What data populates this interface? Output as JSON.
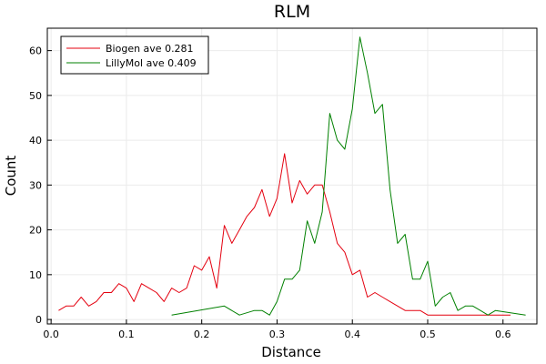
{
  "chart_data": {
    "type": "line",
    "title": "RLM",
    "xlabel": "Distance",
    "ylabel": "Count",
    "xlim": [
      -0.005,
      0.645
    ],
    "ylim": [
      -1,
      65
    ],
    "xticks": [
      0.0,
      0.1,
      0.2,
      0.3,
      0.4,
      0.5,
      0.6
    ],
    "xtick_labels": [
      "0.0",
      "0.1",
      "0.2",
      "0.3",
      "0.4",
      "0.5",
      "0.6"
    ],
    "yticks": [
      0,
      10,
      20,
      30,
      40,
      50,
      60
    ],
    "ytick_labels": [
      "0",
      "10",
      "20",
      "30",
      "40",
      "50",
      "60"
    ],
    "grid": true,
    "legend_position": "top-left",
    "series": [
      {
        "name": "Biogen ave 0.281",
        "color": "#e4000f",
        "x": [
          0.01,
          0.02,
          0.03,
          0.04,
          0.05,
          0.06,
          0.07,
          0.08,
          0.09,
          0.1,
          0.11,
          0.12,
          0.13,
          0.14,
          0.15,
          0.16,
          0.17,
          0.18,
          0.19,
          0.2,
          0.21,
          0.22,
          0.23,
          0.24,
          0.25,
          0.26,
          0.27,
          0.28,
          0.29,
          0.3,
          0.31,
          0.32,
          0.33,
          0.34,
          0.35,
          0.36,
          0.37,
          0.38,
          0.39,
          0.4,
          0.41,
          0.42,
          0.43,
          0.44,
          0.45,
          0.46,
          0.47,
          0.48,
          0.49,
          0.5,
          0.51,
          0.52,
          0.53,
          0.54,
          0.55,
          0.56,
          0.57,
          0.58,
          0.59,
          0.6,
          0.61
        ],
        "y": [
          2,
          3,
          3,
          5,
          3,
          4,
          6,
          6,
          8,
          7,
          4,
          8,
          7,
          6,
          4,
          7,
          6,
          7,
          12,
          11,
          14,
          7,
          21,
          17,
          20,
          23,
          25,
          29,
          23,
          27,
          37,
          26,
          31,
          28,
          30,
          30,
          24,
          17,
          15,
          10,
          11,
          5,
          6,
          5,
          4,
          3,
          2,
          2,
          2,
          1,
          1,
          1,
          1,
          1,
          1,
          1,
          1,
          1,
          1,
          1,
          1
        ]
      },
      {
        "name": "LillyMol ave 0.409",
        "color": "#008000",
        "x": [
          0.16,
          0.23,
          0.25,
          0.27,
          0.28,
          0.29,
          0.3,
          0.31,
          0.32,
          0.33,
          0.34,
          0.35,
          0.36,
          0.37,
          0.38,
          0.39,
          0.4,
          0.41,
          0.42,
          0.43,
          0.44,
          0.45,
          0.46,
          0.47,
          0.48,
          0.49,
          0.5,
          0.51,
          0.52,
          0.53,
          0.54,
          0.55,
          0.56,
          0.57,
          0.58,
          0.59,
          0.63
        ],
        "y": [
          1,
          3,
          1,
          2,
          2,
          1,
          4,
          9,
          9,
          11,
          22,
          17,
          24,
          46,
          40,
          38,
          47,
          63,
          55,
          46,
          48,
          29,
          17,
          19,
          9,
          9,
          13,
          3,
          5,
          6,
          2,
          3,
          3,
          2,
          1,
          2,
          1
        ]
      }
    ]
  }
}
